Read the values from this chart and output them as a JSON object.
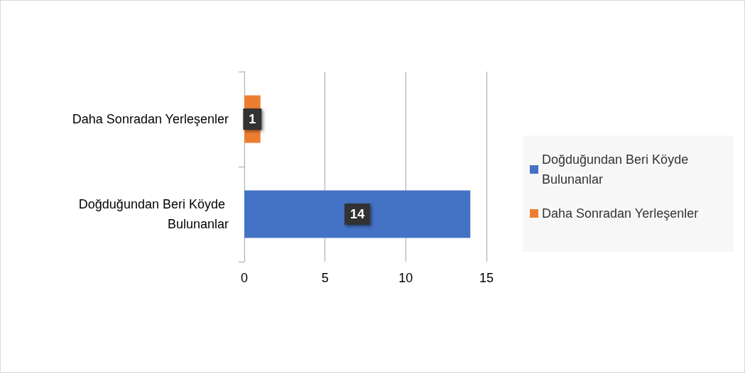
{
  "chart_data": {
    "type": "bar",
    "orientation": "horizontal",
    "categories": [
      "Daha Sonradan Yerleşenler",
      "Doğduğundan Beri Köyde Bulunanlar"
    ],
    "series": [
      {
        "name": "Doğduğundan Beri Köyde Bulunanlar",
        "color": "#4472c4",
        "values": [
          null,
          14
        ]
      },
      {
        "name": "Daha Sonradan Yerleşenler",
        "color": "#ed7d31",
        "values": [
          1,
          null
        ]
      }
    ],
    "xlim": [
      0,
      15
    ],
    "xticks": [
      0,
      5,
      10,
      15
    ],
    "grid": "x",
    "legend": "right",
    "data_labels": true
  }
}
